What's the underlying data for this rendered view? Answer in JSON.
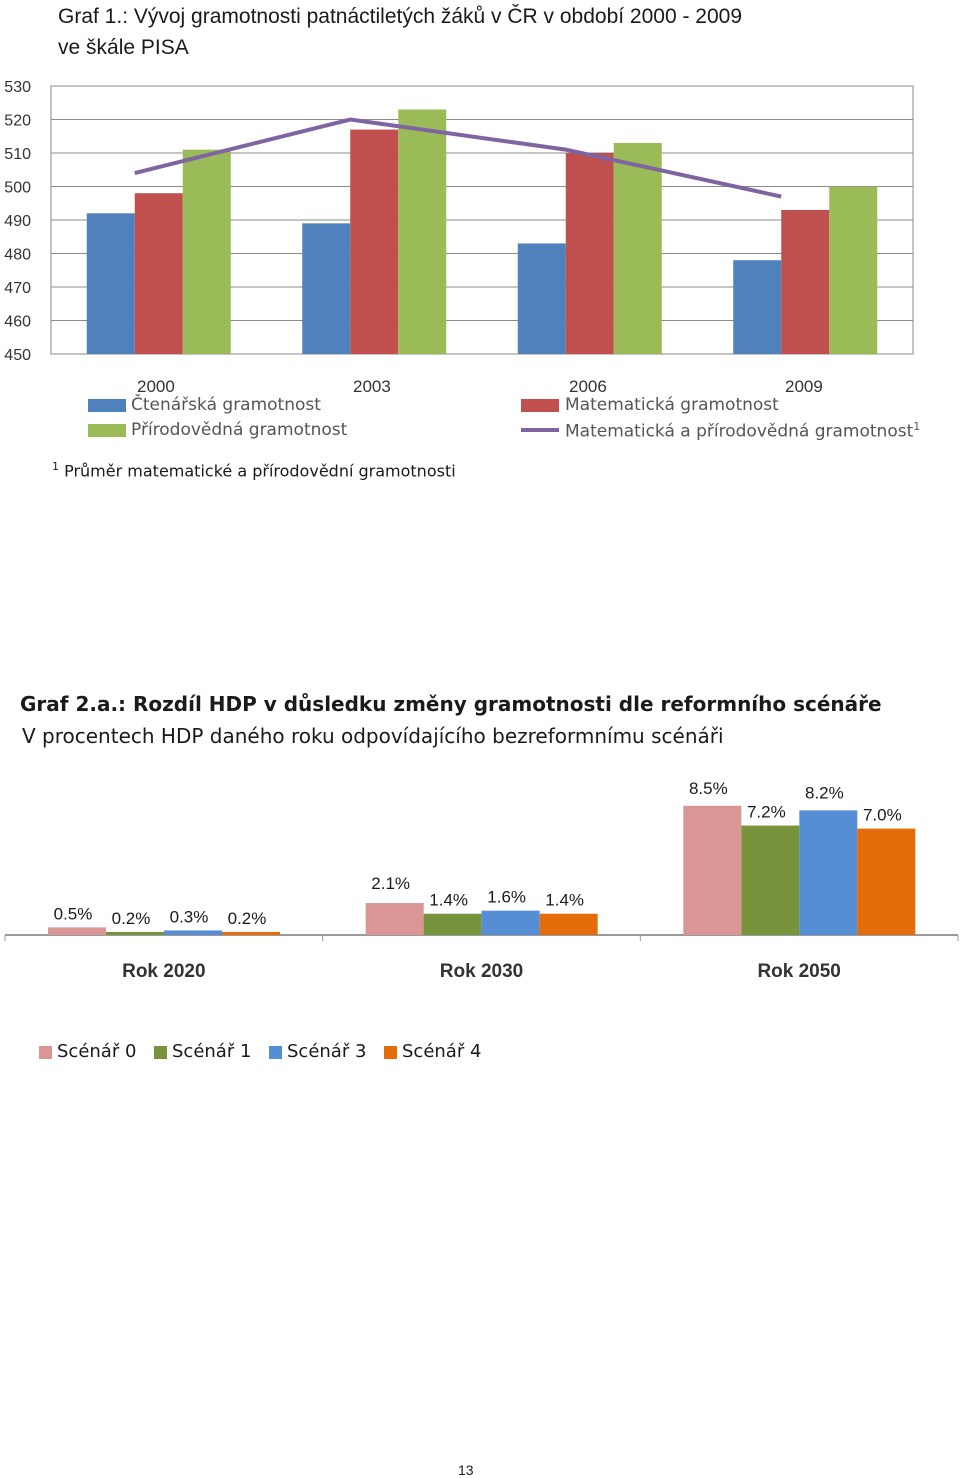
{
  "chart_data": [
    {
      "type": "bar",
      "title": "Graf 1.: Vývoj gramotnosti patnáctiletých žáků v ČR v období 2000 - 2009",
      "subtitle": "ve škále PISA",
      "categories": [
        "2000",
        "2003",
        "2006",
        "2009"
      ],
      "ylim": [
        450,
        530
      ],
      "yticks": [
        "530",
        "520",
        "510",
        "500",
        "490",
        "480",
        "470",
        "460",
        "450"
      ],
      "grid": true,
      "series": [
        {
          "name": "Čtenářská gramotnost",
          "type": "bar",
          "color": "#4f81bd",
          "values": [
            492,
            489,
            483,
            478
          ]
        },
        {
          "name": "Matematická gramotnost",
          "type": "bar",
          "color": "#c0504d",
          "values": [
            498,
            517,
            510,
            493
          ]
        },
        {
          "name": "Přírodovědná gramotnost",
          "type": "bar",
          "color": "#9bbb59",
          "values": [
            511,
            523,
            513,
            500
          ]
        },
        {
          "name": "Matematická a přírodovědná gramotnost",
          "name_sup": "1",
          "type": "line",
          "color": "#8064a2",
          "values": [
            504,
            520,
            511,
            497
          ]
        }
      ],
      "legend_placement": "bottom",
      "footnote": {
        "mark": "1",
        "text": "Průměr matematické a přírodovědní gramotnosti"
      }
    },
    {
      "type": "bar",
      "title": "Graf 2.a.: Rozdíl HDP v důsledku změny gramotnosti dle reformního scénáře",
      "subtitle": "V procentech HDP daného roku odpovídajícího bezreformnímu scénáři",
      "categories": [
        "Rok 2020",
        "Rok 2030",
        "Rok 2050"
      ],
      "series": [
        {
          "name": "Scénář 0",
          "color": "#d99694",
          "values": [
            0.5,
            2.1,
            8.5
          ],
          "labels": [
            "0.5%",
            "2.1%",
            "8.5%"
          ]
        },
        {
          "name": "Scénář 1",
          "color": "#77933c",
          "values": [
            0.2,
            1.4,
            7.2
          ],
          "labels": [
            "0.2%",
            "1.4%",
            "7.2%"
          ]
        },
        {
          "name": "Scénář 3",
          "color": "#558ed5",
          "values": [
            0.3,
            1.6,
            8.2
          ],
          "labels": [
            "0.3%",
            "1.6%",
            "8.2%"
          ]
        },
        {
          "name": "Scénář 4",
          "color": "#e46c0a",
          "values": [
            0.2,
            1.4,
            7.0
          ],
          "labels": [
            "0.2%",
            "1.4%",
            "7.0%"
          ]
        }
      ],
      "legend_placement": "bottom-left"
    }
  ],
  "page_number": "13"
}
